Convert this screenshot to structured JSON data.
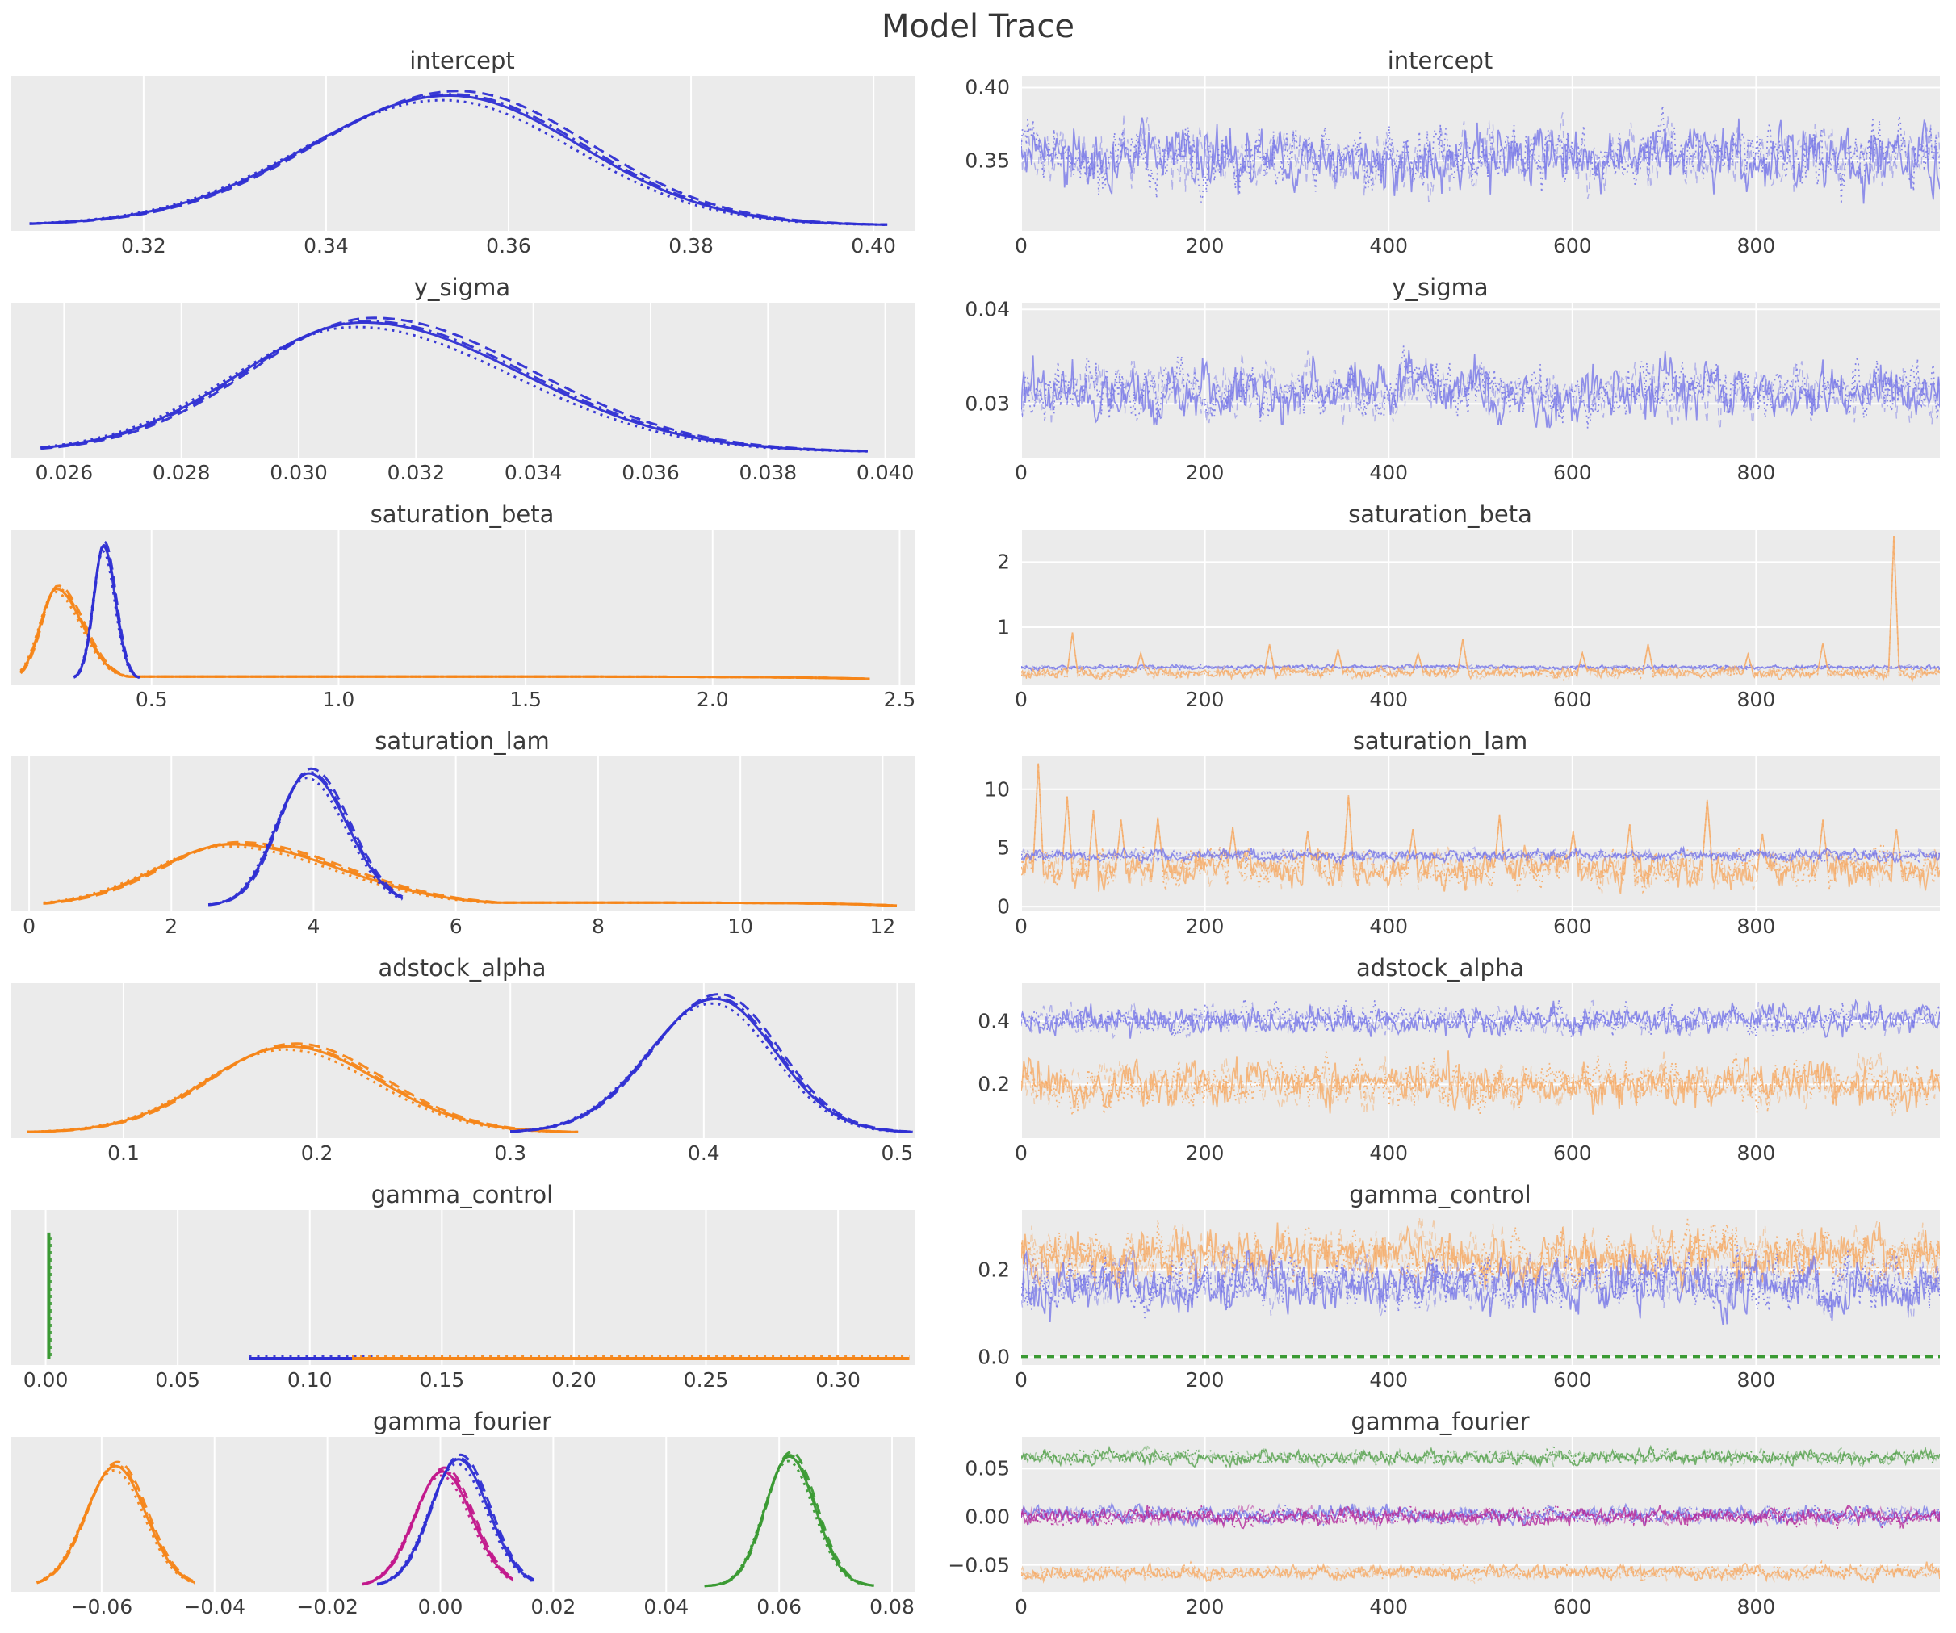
{
  "title": "Model Trace",
  "colors": {
    "blue": "#2f2fd3",
    "orange": "#f58518",
    "green": "#3a9a33",
    "magenta": "#c2188c",
    "blue_trace": "#7878e8",
    "orange_trace": "#f6ab67",
    "green_trace": "#57a34f",
    "magenta_trace": "#b52a9b"
  },
  "chains": {
    "count": 4,
    "linestyles": [
      "solid",
      "dashed",
      "dotted",
      "dashdot"
    ]
  },
  "chart_data": [
    {
      "param": "intercept",
      "kde": {
        "type": "kde",
        "xlim": [
          0.3055,
          0.4045
        ],
        "xticks": [
          {
            "v": 0.32,
            "label": "0.32"
          },
          {
            "v": 0.34,
            "label": "0.34"
          },
          {
            "v": 0.36,
            "label": "0.36"
          },
          {
            "v": 0.38,
            "label": "0.38"
          },
          {
            "v": 0.4,
            "label": "0.40"
          }
        ],
        "series": [
          {
            "type": "kde",
            "color": "blue",
            "center": 0.3535,
            "sigmaL": 0.0155,
            "sigmaR": 0.0145,
            "height": 0.95,
            "range": [
              0.3075,
              0.4015
            ]
          }
        ]
      },
      "trace": {
        "type": "trace",
        "xlim": [
          0,
          1000
        ],
        "xticks": [
          {
            "v": 0,
            "label": "0"
          },
          {
            "v": 200,
            "label": "200"
          },
          {
            "v": 400,
            "label": "400"
          },
          {
            "v": 600,
            "label": "600"
          },
          {
            "v": 800,
            "label": "800"
          }
        ],
        "ylim": [
          0.302,
          0.408
        ],
        "yticks": [
          {
            "v": 0.35,
            "label": "0.35"
          },
          {
            "v": 0.4,
            "label": "0.40"
          }
        ],
        "series": [
          {
            "color": "blue_trace",
            "mean": 0.3525,
            "amp": 0.0155
          }
        ]
      }
    },
    {
      "param": "y_sigma",
      "kde": {
        "type": "kde",
        "xlim": [
          0.0251,
          0.0405
        ],
        "xticks": [
          {
            "v": 0.026,
            "label": "0.026"
          },
          {
            "v": 0.028,
            "label": "0.028"
          },
          {
            "v": 0.03,
            "label": "0.030"
          },
          {
            "v": 0.032,
            "label": "0.032"
          },
          {
            "v": 0.034,
            "label": "0.034"
          },
          {
            "v": 0.036,
            "label": "0.036"
          },
          {
            "v": 0.038,
            "label": "0.038"
          },
          {
            "v": 0.04,
            "label": "0.040"
          }
        ],
        "series": [
          {
            "type": "kde",
            "color": "blue",
            "center": 0.0311,
            "sigmaL": 0.0021,
            "sigmaR": 0.0027,
            "height": 0.95,
            "range": [
              0.0256,
              0.0397
            ]
          }
        ]
      },
      "trace": {
        "type": "trace",
        "xlim": [
          0,
          1000
        ],
        "xticks": [
          {
            "v": 0,
            "label": "0"
          },
          {
            "v": 200,
            "label": "200"
          },
          {
            "v": 400,
            "label": "400"
          },
          {
            "v": 600,
            "label": "600"
          },
          {
            "v": 800,
            "label": "800"
          }
        ],
        "ylim": [
          0.0243,
          0.0407
        ],
        "yticks": [
          {
            "v": 0.03,
            "label": "0.03"
          },
          {
            "v": 0.04,
            "label": "0.04"
          }
        ],
        "series": [
          {
            "color": "blue_trace",
            "mean": 0.0313,
            "amp": 0.0021
          }
        ]
      }
    },
    {
      "param": "saturation_beta",
      "kde": {
        "type": "kde",
        "xlim": [
          0.125,
          2.54
        ],
        "xticks": [
          {
            "v": 0.5,
            "label": "0.5"
          },
          {
            "v": 1.0,
            "label": "1.0"
          },
          {
            "v": 1.5,
            "label": "1.5"
          },
          {
            "v": 2.0,
            "label": "2.0"
          },
          {
            "v": 2.5,
            "label": "2.5"
          }
        ],
        "series": [
          {
            "type": "kde",
            "color": "orange",
            "center": 0.245,
            "sigmaL": 0.042,
            "sigmaR": 0.07,
            "height": 0.66,
            "tailTo": 2.42,
            "tailH": 0.016,
            "range": [
              0.15,
              2.42
            ]
          },
          {
            "type": "kde",
            "color": "blue",
            "center": 0.372,
            "sigmaL": 0.027,
            "sigmaR": 0.031,
            "height": 0.97,
            "range": [
              0.292,
              0.468
            ]
          }
        ]
      },
      "trace": {
        "type": "trace",
        "xlim": [
          0,
          1000
        ],
        "xticks": [
          {
            "v": 0,
            "label": "0"
          },
          {
            "v": 200,
            "label": "200"
          },
          {
            "v": 400,
            "label": "400"
          },
          {
            "v": 600,
            "label": "600"
          },
          {
            "v": 800,
            "label": "800"
          }
        ],
        "ylim": [
          0.12,
          2.5
        ],
        "yticks": [
          {
            "v": 1,
            "label": "1"
          },
          {
            "v": 2,
            "label": "2"
          }
        ],
        "series": [
          {
            "color": "blue_trace",
            "mean": 0.385,
            "amp": 0.024
          },
          {
            "color": "orange_trace",
            "mean": 0.3,
            "amp": 0.055,
            "spikes": [
              {
                "x": 55,
                "h": 0.62
              },
              {
                "x": 130,
                "h": 0.3
              },
              {
                "x": 270,
                "h": 0.44
              },
              {
                "x": 345,
                "h": 0.36
              },
              {
                "x": 432,
                "h": 0.3
              },
              {
                "x": 480,
                "h": 0.52
              },
              {
                "x": 610,
                "h": 0.3
              },
              {
                "x": 682,
                "h": 0.44
              },
              {
                "x": 790,
                "h": 0.28
              },
              {
                "x": 872,
                "h": 0.46
              },
              {
                "x": 948,
                "h": 2.1
              }
            ]
          }
        ]
      }
    },
    {
      "param": "saturation_lam",
      "kde": {
        "type": "kde",
        "xlim": [
          -0.25,
          12.45
        ],
        "xticks": [
          {
            "v": 0,
            "label": "0"
          },
          {
            "v": 2,
            "label": "2"
          },
          {
            "v": 4,
            "label": "4"
          },
          {
            "v": 6,
            "label": "6"
          },
          {
            "v": 8,
            "label": "8"
          },
          {
            "v": 10,
            "label": "10"
          },
          {
            "v": 12,
            "label": "12"
          }
        ],
        "series": [
          {
            "type": "kde",
            "color": "orange",
            "center": 2.85,
            "sigmaL": 1.05,
            "sigmaR": 1.5,
            "height": 0.45,
            "tailTo": 12.2,
            "tailH": 0.022,
            "range": [
              0.2,
              12.2
            ]
          },
          {
            "type": "kde",
            "color": "blue",
            "center": 3.93,
            "sigmaL": 0.45,
            "sigmaR": 0.55,
            "height": 0.97,
            "range": [
              2.52,
              5.25
            ]
          }
        ]
      },
      "trace": {
        "type": "trace",
        "xlim": [
          0,
          1000
        ],
        "xticks": [
          {
            "v": 0,
            "label": "0"
          },
          {
            "v": 200,
            "label": "200"
          },
          {
            "v": 400,
            "label": "400"
          },
          {
            "v": 600,
            "label": "600"
          },
          {
            "v": 800,
            "label": "800"
          }
        ],
        "ylim": [
          -0.4,
          12.8
        ],
        "yticks": [
          {
            "v": 0,
            "label": "0"
          },
          {
            "v": 5,
            "label": "5"
          },
          {
            "v": 10,
            "label": "10"
          }
        ],
        "series": [
          {
            "color": "orange_trace",
            "mean": 3.2,
            "amp": 1.05,
            "spikes": [
              {
                "x": 18,
                "h": 9.0
              },
              {
                "x": 50,
                "h": 6.2
              },
              {
                "x": 78,
                "h": 5.0
              },
              {
                "x": 108,
                "h": 4.2
              },
              {
                "x": 148,
                "h": 4.4
              },
              {
                "x": 230,
                "h": 3.6
              },
              {
                "x": 312,
                "h": 3.2
              },
              {
                "x": 356,
                "h": 6.3
              },
              {
                "x": 425,
                "h": 3.4
              },
              {
                "x": 520,
                "h": 4.6
              },
              {
                "x": 600,
                "h": 3.2
              },
              {
                "x": 662,
                "h": 3.8
              },
              {
                "x": 745,
                "h": 5.9
              },
              {
                "x": 805,
                "h": 3.0
              },
              {
                "x": 872,
                "h": 4.2
              },
              {
                "x": 952,
                "h": 3.4
              }
            ]
          },
          {
            "color": "blue_trace",
            "mean": 4.35,
            "amp": 0.33
          }
        ]
      }
    },
    {
      "param": "adstock_alpha",
      "kde": {
        "type": "kde",
        "xlim": [
          0.042,
          0.509
        ],
        "xticks": [
          {
            "v": 0.1,
            "label": "0.1"
          },
          {
            "v": 0.2,
            "label": "0.2"
          },
          {
            "v": 0.3,
            "label": "0.3"
          },
          {
            "v": 0.4,
            "label": "0.4"
          },
          {
            "v": 0.5,
            "label": "0.5"
          }
        ],
        "series": [
          {
            "type": "kde",
            "color": "orange",
            "center": 0.186,
            "sigmaL": 0.043,
            "sigmaR": 0.046,
            "height": 0.63,
            "range": [
              0.05,
              0.335
            ]
          },
          {
            "type": "kde",
            "color": "blue",
            "center": 0.406,
            "sigmaL": 0.034,
            "sigmaR": 0.031,
            "height": 0.98,
            "range": [
              0.3,
              0.508
            ]
          }
        ]
      },
      "trace": {
        "type": "trace",
        "xlim": [
          0,
          1000
        ],
        "xticks": [
          {
            "v": 0,
            "label": "0"
          },
          {
            "v": 200,
            "label": "200"
          },
          {
            "v": 400,
            "label": "400"
          },
          {
            "v": 600,
            "label": "600"
          },
          {
            "v": 800,
            "label": "800"
          }
        ],
        "ylim": [
          0.03,
          0.52
        ],
        "yticks": [
          {
            "v": 0.2,
            "label": "0.2"
          },
          {
            "v": 0.4,
            "label": "0.4"
          }
        ],
        "series": [
          {
            "color": "blue_trace",
            "mean": 0.405,
            "amp": 0.032
          },
          {
            "color": "orange_trace",
            "mean": 0.2,
            "amp": 0.05
          }
        ]
      }
    },
    {
      "param": "gamma_control",
      "kde": {
        "type": "kde",
        "xlim": [
          -0.013,
          0.329
        ],
        "xticks": [
          {
            "v": 0.0,
            "label": "0.00"
          },
          {
            "v": 0.05,
            "label": "0.05"
          },
          {
            "v": 0.1,
            "label": "0.10"
          },
          {
            "v": 0.15,
            "label": "0.15"
          },
          {
            "v": 0.2,
            "label": "0.20"
          },
          {
            "v": 0.25,
            "label": "0.25"
          },
          {
            "v": 0.3,
            "label": "0.30"
          }
        ],
        "series": [
          {
            "type": "strip",
            "color": "blue",
            "from": 0.077,
            "to": 0.126
          },
          {
            "type": "strip",
            "color": "orange",
            "from": 0.116,
            "to": 0.327
          },
          {
            "type": "spike",
            "color": "green",
            "center": 0.0012,
            "height": 0.93
          }
        ]
      },
      "trace": {
        "type": "trace",
        "xlim": [
          0,
          1000
        ],
        "xticks": [
          {
            "v": 0,
            "label": "0"
          },
          {
            "v": 200,
            "label": "200"
          },
          {
            "v": 400,
            "label": "400"
          },
          {
            "v": 600,
            "label": "600"
          },
          {
            "v": 800,
            "label": "800"
          }
        ],
        "ylim": [
          -0.018,
          0.336
        ],
        "yticks": [
          {
            "v": 0.0,
            "label": "0.0"
          },
          {
            "v": 0.2,
            "label": "0.2"
          }
        ],
        "series": [
          {
            "color": "orange_trace",
            "mean": 0.232,
            "amp": 0.042
          },
          {
            "color": "blue_trace",
            "mean": 0.168,
            "amp": 0.042
          },
          {
            "color": "green",
            "const": 0.0012
          }
        ]
      }
    },
    {
      "param": "gamma_fourier",
      "kde": {
        "type": "kde",
        "xlim": [
          -0.076,
          0.084
        ],
        "xticks": [
          {
            "v": -0.06,
            "label": "−0.06"
          },
          {
            "v": -0.04,
            "label": "−0.04"
          },
          {
            "v": -0.02,
            "label": "−0.02"
          },
          {
            "v": 0.0,
            "label": "0.00"
          },
          {
            "v": 0.02,
            "label": "0.02"
          },
          {
            "v": 0.04,
            "label": "0.04"
          },
          {
            "v": 0.06,
            "label": "0.06"
          },
          {
            "v": 0.08,
            "label": "0.08"
          }
        ],
        "series": [
          {
            "type": "kde",
            "color": "orange",
            "center": -0.0575,
            "sigmaL": 0.0053,
            "sigmaR": 0.0053,
            "height": 0.88,
            "range": [
              -0.0715,
              -0.0435
            ]
          },
          {
            "type": "kde",
            "color": "magenta",
            "center": 0.0004,
            "sigmaL": 0.005,
            "sigmaR": 0.0052,
            "height": 0.84,
            "range": [
              -0.0138,
              0.0128
            ]
          },
          {
            "type": "kde",
            "color": "blue",
            "center": 0.0032,
            "sigmaL": 0.005,
            "sigmaR": 0.0053,
            "height": 0.93,
            "range": [
              -0.0112,
              0.0165
            ]
          },
          {
            "type": "kde",
            "color": "green",
            "center": 0.0618,
            "sigmaL": 0.0043,
            "sigmaR": 0.0046,
            "height": 0.95,
            "range": [
              0.0468,
              0.0768
            ]
          }
        ]
      },
      "trace": {
        "type": "trace",
        "xlim": [
          0,
          1000
        ],
        "xticks": [
          {
            "v": 0,
            "label": "0"
          },
          {
            "v": 200,
            "label": "200"
          },
          {
            "v": 400,
            "label": "400"
          },
          {
            "v": 600,
            "label": "600"
          },
          {
            "v": 800,
            "label": "800"
          }
        ],
        "ylim": [
          -0.078,
          0.083
        ],
        "yticks": [
          {
            "v": -0.05,
            "label": "−0.05"
          },
          {
            "v": 0.0,
            "label": "0.00"
          },
          {
            "v": 0.05,
            "label": "0.05"
          }
        ],
        "series": [
          {
            "color": "green_trace",
            "mean": 0.0618,
            "amp": 0.0052
          },
          {
            "color": "blue_trace",
            "mean": 0.002,
            "amp": 0.0062
          },
          {
            "color": "magenta_trace",
            "mean": 0.0,
            "amp": 0.0062
          },
          {
            "color": "orange_trace",
            "mean": -0.0578,
            "amp": 0.0052
          }
        ]
      }
    }
  ]
}
